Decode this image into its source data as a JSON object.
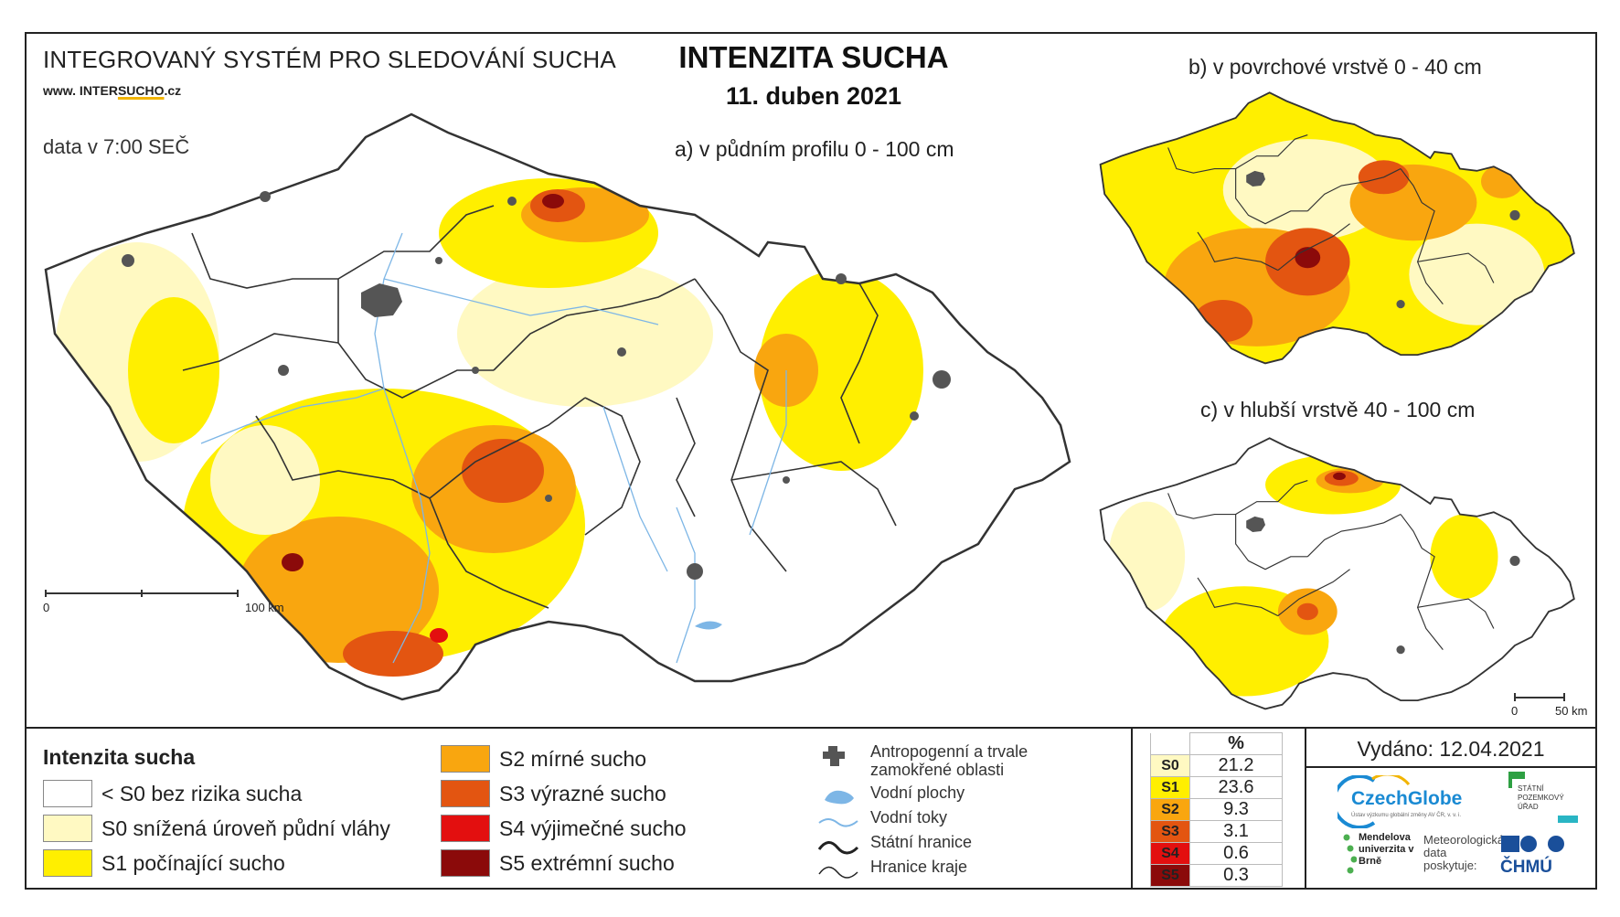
{
  "header": {
    "system_title": "INTEGROVANÝ SYSTÉM PRO SLEDOVÁNÍ SUCHA",
    "website_prefix": "www. INTER",
    "website_mid": "SUCHO",
    "website_suffix": ".cz",
    "data_time": "data v 7:00 SEČ",
    "main_title": "INTENZITA SUCHA",
    "date": "11. duben 2021"
  },
  "maps": {
    "a_label": "a) v půdním profilu 0 - 100 cm",
    "b_label": "b) v povrchové vrstvě 0 - 40 cm",
    "c_label": "c) v hlubší vrstvě 40 - 100 cm",
    "a_scale": {
      "start": "0",
      "end": "100 km"
    },
    "c_scale": {
      "start": "0",
      "end": "50 km"
    }
  },
  "legend": {
    "title": "Intenzita sucha",
    "items": [
      {
        "label": "< S0 bez rizika sucha",
        "color": "#ffffff"
      },
      {
        "label": "S0 snížená úroveň půdní vláhy",
        "color": "#fff9c2"
      },
      {
        "label": "S1 počínající sucho",
        "color": "#ffef00"
      },
      {
        "label": "S2 mírné sucho",
        "color": "#f9a60f"
      },
      {
        "label": "S3 výrazné sucho",
        "color": "#e35511"
      },
      {
        "label": "S4 výjimečné sucho",
        "color": "#e30f0f"
      },
      {
        "label": "S5 extrémní sucho",
        "color": "#8b0a0a"
      }
    ]
  },
  "overlays": [
    {
      "label": "Antropogenní a trvale zamokřené oblasti",
      "icon": "urban-area-icon"
    },
    {
      "label": "Vodní plochy",
      "icon": "water-body-icon"
    },
    {
      "label": "Vodní toky",
      "icon": "river-icon"
    },
    {
      "label": "Státní hranice",
      "icon": "state-border-icon"
    },
    {
      "label": "Hranice kraje",
      "icon": "region-border-icon"
    }
  ],
  "percentages": {
    "header": "%",
    "rows": [
      {
        "class": "S0",
        "value": "21.2",
        "color": "#fff9c2"
      },
      {
        "class": "S1",
        "value": "23.6",
        "color": "#ffef00"
      },
      {
        "class": "S2",
        "value": "9.3",
        "color": "#f9a60f"
      },
      {
        "class": "S3",
        "value": "3.1",
        "color": "#e35511"
      },
      {
        "class": "S4",
        "value": "0.6",
        "color": "#e30f0f"
      },
      {
        "class": "S5",
        "value": "0.3",
        "color": "#8b0a0a"
      }
    ]
  },
  "footer": {
    "issued": "Vydáno: 12.04.2021",
    "czechglobe": "CzechGlobe",
    "czechglobe_sub": "Ústav výzkumu globální změny AV ČR, v. v. i.",
    "spu": "STÁTNÍ POZEMKOVÝ ÚŘAD",
    "mendel": "Mendelova univerzita v Brně",
    "meteo": "Meteorologická data poskytuje:",
    "chmu": "ČHMÚ"
  }
}
